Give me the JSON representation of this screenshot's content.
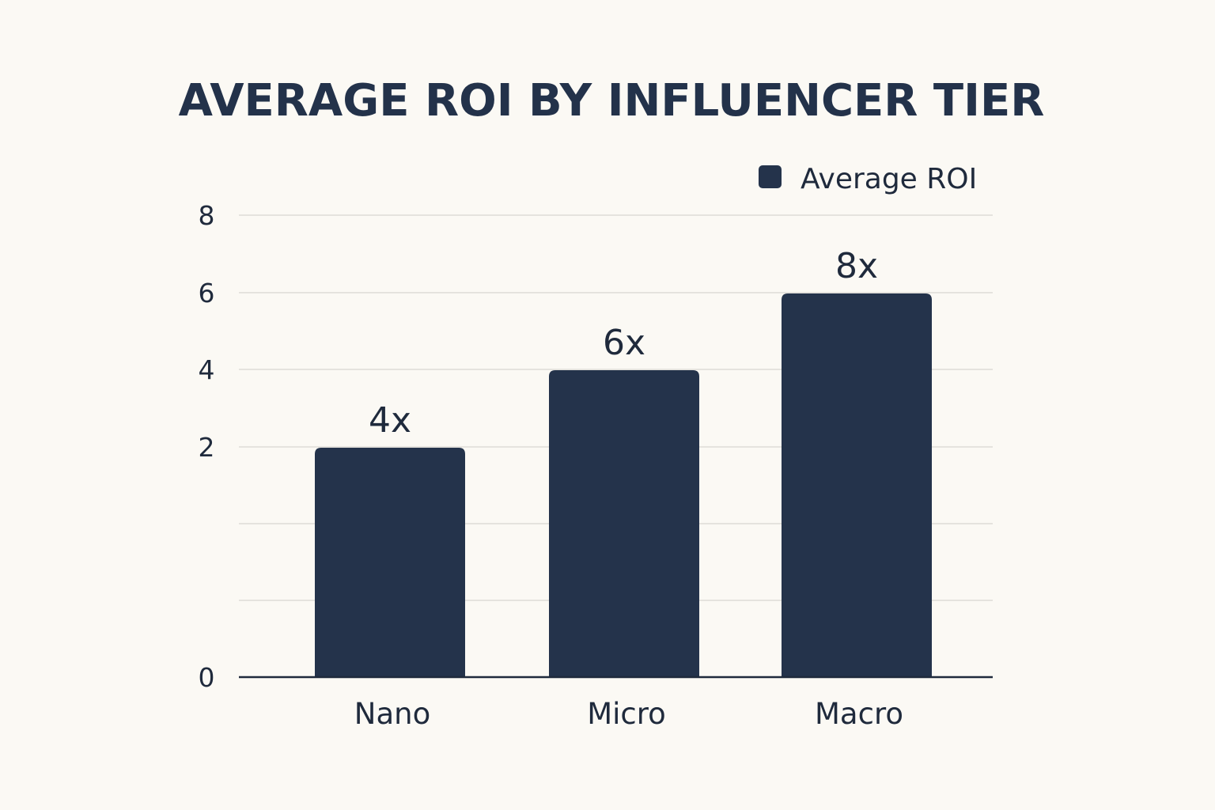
{
  "chart_data": {
    "type": "bar",
    "title": "AVERAGE ROI BY INFLUENCER TIER",
    "xlabel": "",
    "ylabel": "",
    "categories": [
      "Nano",
      "Micro",
      "Macro"
    ],
    "series": [
      {
        "name": "Average ROI",
        "values": [
          4,
          6,
          8
        ],
        "data_labels": [
          "4x",
          "6x",
          "8x"
        ],
        "color": "#24334b"
      }
    ],
    "y_tick_labels": [
      "0",
      "",
      "",
      "2",
      "4",
      "6",
      "8"
    ],
    "ylim": [
      0,
      8
    ],
    "grid": true,
    "legend": "top-right"
  },
  "colors": {
    "background": "#fbf9f4",
    "bar": "#24334b",
    "grid": "#dedcd6",
    "axis": "#1f2a3c"
  }
}
